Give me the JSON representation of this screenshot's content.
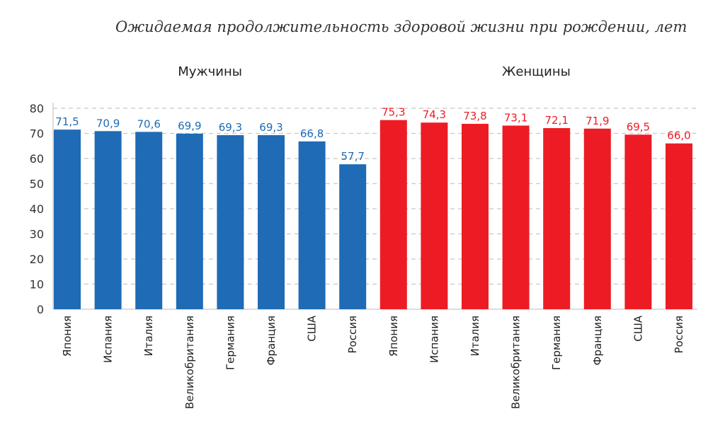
{
  "chart_data": {
    "type": "bar",
    "title": "Ожидаемая продолжительность здоровой жизни при рождении, лет",
    "xlabel": "",
    "ylabel": "",
    "ylim": [
      0,
      80
    ],
    "yticks": [
      0,
      10,
      20,
      30,
      40,
      50,
      60,
      70,
      80
    ],
    "grid": true,
    "groups": [
      {
        "name": "Мужчины",
        "color": "#1f6bb5",
        "categories": [
          "Япония",
          "Испания",
          "Италия",
          "Великобритания",
          "Германия",
          "Франция",
          "США",
          "Россия"
        ],
        "values": [
          71.5,
          70.9,
          70.6,
          69.9,
          69.3,
          69.3,
          66.8,
          57.7
        ],
        "labels": [
          "71,5",
          "70,9",
          "70,6",
          "69,9",
          "69,3",
          "69,3",
          "66,8",
          "57,7"
        ]
      },
      {
        "name": "Женщины",
        "color": "#ed1c24",
        "categories": [
          "Япония",
          "Испания",
          "Италия",
          "Великобритания",
          "Германия",
          "Франция",
          "США",
          "Россия"
        ],
        "values": [
          75.3,
          74.3,
          73.8,
          73.1,
          72.1,
          71.9,
          69.5,
          66.0
        ],
        "labels": [
          "75,3",
          "74,3",
          "73,8",
          "73,1",
          "72,1",
          "71,9",
          "69,5",
          "66,0"
        ]
      }
    ]
  }
}
